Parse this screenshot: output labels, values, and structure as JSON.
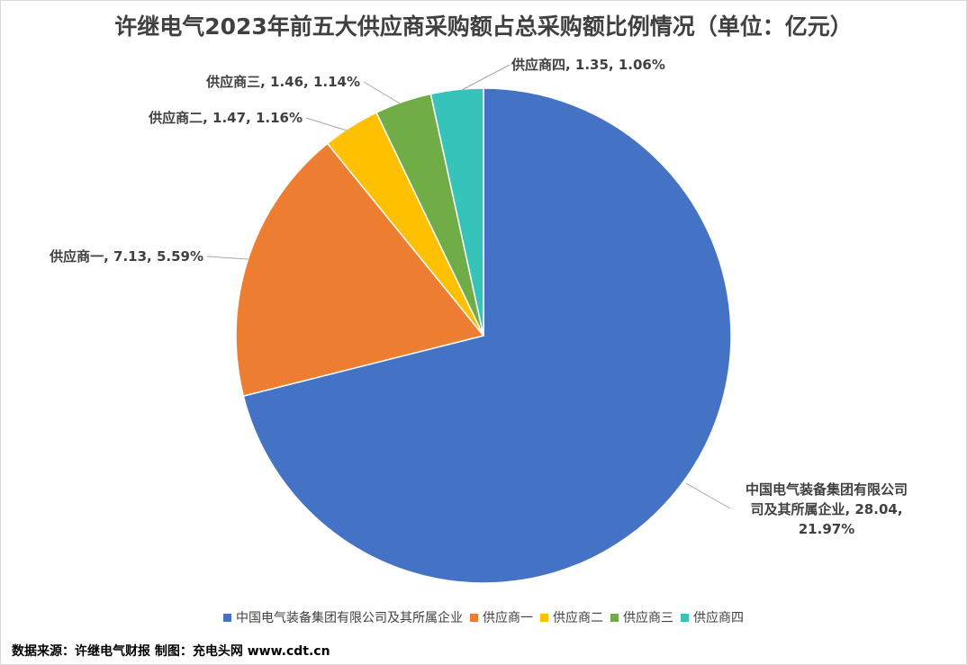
{
  "title": "许继电气2023年前五大供应商采购额占总采购额比例情况（单位：亿元）",
  "chart_data": {
    "type": "pie",
    "title": "许继电气2023年前五大供应商采购额占总采购额比例情况（单位：亿元）",
    "legend_position": "bottom",
    "series": [
      {
        "name": "中国电气装备集团有限公司及其所属企业",
        "value": 28.04,
        "percent": "21.97%",
        "label_lines": [
          "中国电气装备集团有限公司",
          "司及其所属企业, 28.04,",
          "21.97%"
        ],
        "color": "#4472c4"
      },
      {
        "name": "供应商一",
        "value": 7.13,
        "percent": "5.59%",
        "label_lines": [
          "供应商一, 7.13, 5.59%"
        ],
        "color": "#ed7d31"
      },
      {
        "name": "供应商二",
        "value": 1.47,
        "percent": "1.16%",
        "label_lines": [
          "供应商二, 1.47, 1.16%"
        ],
        "color": "#ffc000"
      },
      {
        "name": "供应商三",
        "value": 1.46,
        "percent": "1.14%",
        "label_lines": [
          "供应商三, 1.46, 1.14%"
        ],
        "color": "#70ad47"
      },
      {
        "name": "供应商四",
        "value": 1.35,
        "percent": "1.06%",
        "label_lines": [
          "供应商四, 1.35, 1.06%"
        ],
        "color": "#36c3b9"
      }
    ]
  },
  "footer": {
    "source": "数据来源：许继电气财报  制图：充电头网 www.cdt.cn"
  }
}
